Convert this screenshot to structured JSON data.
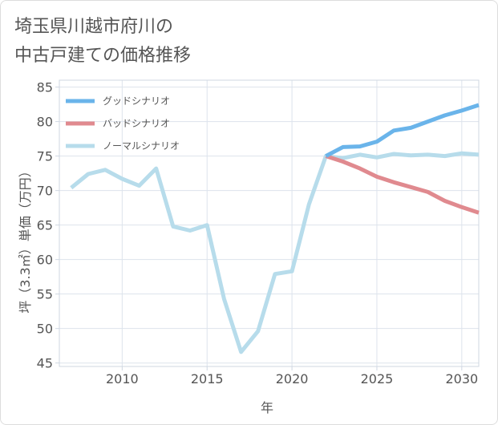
{
  "chart_data": {
    "type": "line",
    "title_lines": [
      "埼玉県川越市府川の",
      "中古戸建ての価格推移"
    ],
    "xlabel": "年",
    "ylabel": "坪（3.3㎡）単価（万円）",
    "xlim": [
      2006.3,
      2031
    ],
    "ylim": [
      44.5,
      86
    ],
    "xticks": [
      2010,
      2015,
      2020,
      2025,
      2030
    ],
    "yticks": [
      45,
      50,
      55,
      60,
      65,
      70,
      75,
      80,
      85
    ],
    "grid": true,
    "legend_position": "top-left",
    "series": [
      {
        "name": "グッドシナリオ",
        "color": "#6ab4ea",
        "x": [
          2022,
          2023,
          2024,
          2025,
          2026,
          2027,
          2028,
          2029,
          2030,
          2031
        ],
        "y": [
          75.0,
          76.3,
          76.4,
          77.1,
          78.7,
          79.1,
          80.0,
          80.9,
          81.6,
          82.4
        ]
      },
      {
        "name": "バッドシナリオ",
        "color": "#e08a8f",
        "x": [
          2022,
          2023,
          2024,
          2025,
          2026,
          2027,
          2028,
          2029,
          2030,
          2031
        ],
        "y": [
          75.0,
          74.2,
          73.2,
          72.0,
          71.2,
          70.5,
          69.8,
          68.5,
          67.6,
          66.8
        ]
      },
      {
        "name": "ノーマルシナリオ",
        "color": "#b7dceb",
        "x": [
          2007,
          2008,
          2009,
          2010,
          2011,
          2012,
          2013,
          2014,
          2015,
          2016,
          2017,
          2018,
          2019,
          2020,
          2021,
          2022,
          2023,
          2024,
          2025,
          2026,
          2027,
          2028,
          2029,
          2030,
          2031
        ],
        "y": [
          70.4,
          72.4,
          73.0,
          71.7,
          70.7,
          73.2,
          64.8,
          64.2,
          65.0,
          54.3,
          46.6,
          49.6,
          57.9,
          58.3,
          68.0,
          75.0,
          74.7,
          75.2,
          74.8,
          75.3,
          75.1,
          75.2,
          75.0,
          75.4,
          75.2
        ]
      }
    ]
  }
}
